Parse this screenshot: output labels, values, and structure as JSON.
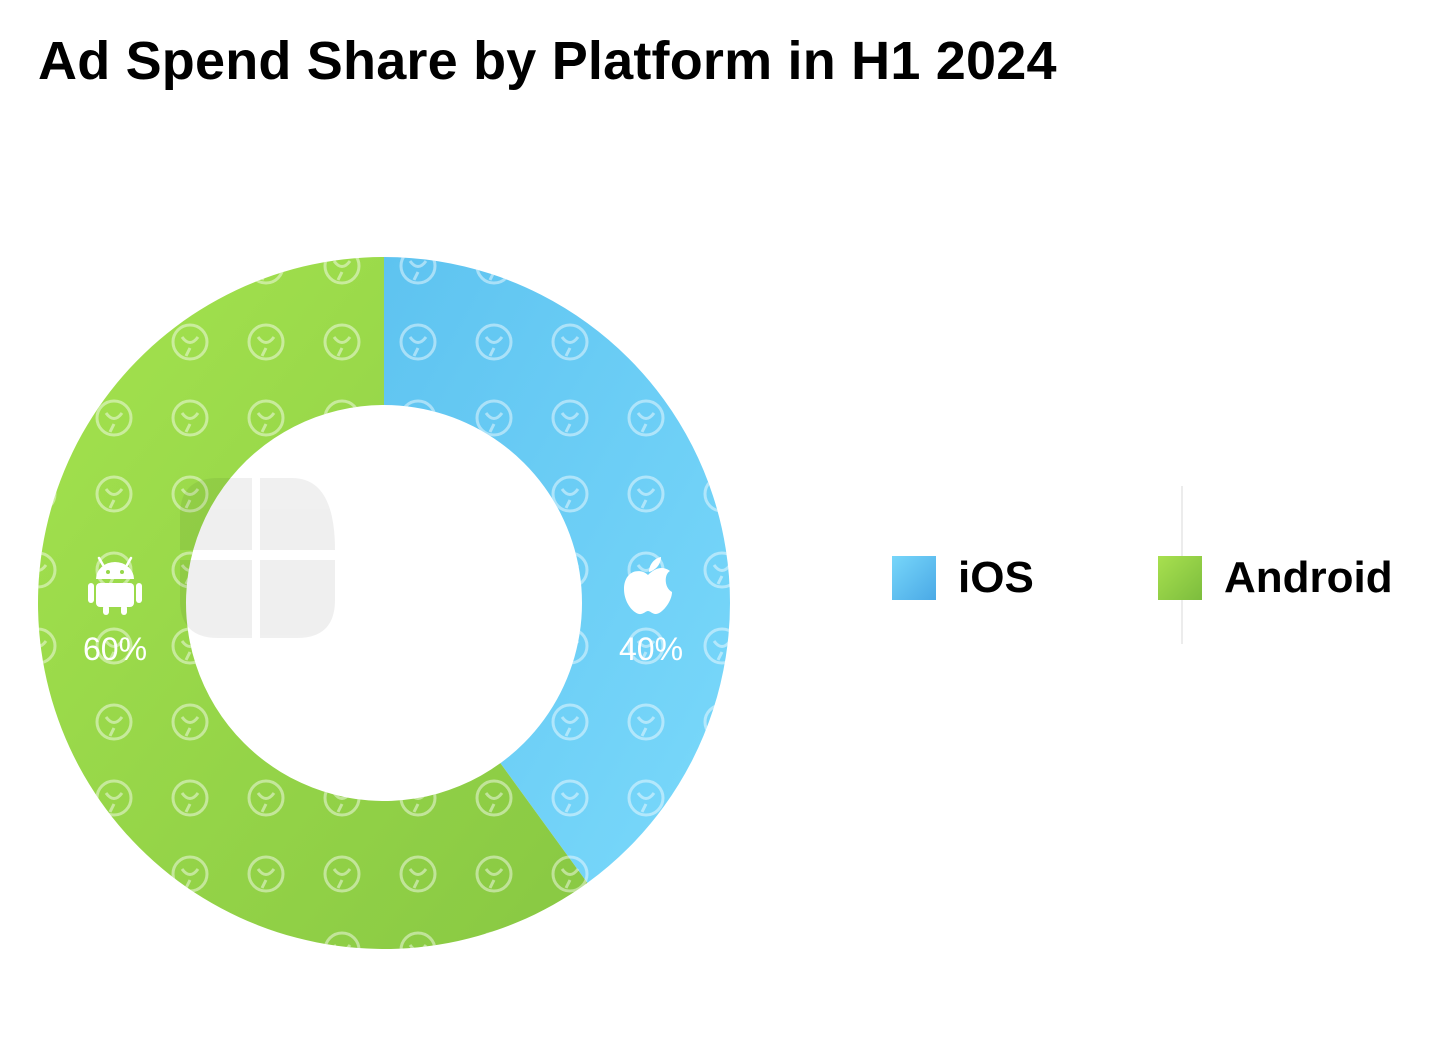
{
  "chart_data": {
    "type": "pie",
    "title": "Ad Spend Share by Platform in H1 2024",
    "donut": true,
    "series": [
      {
        "name": "iOS",
        "value": 40,
        "label": "40%",
        "color": "#62cbf5",
        "icon": "apple-icon"
      },
      {
        "name": "Android",
        "value": 60,
        "label": "60%",
        "color": "#96d84a",
        "icon": "android-icon"
      }
    ],
    "legend_position": "right"
  }
}
